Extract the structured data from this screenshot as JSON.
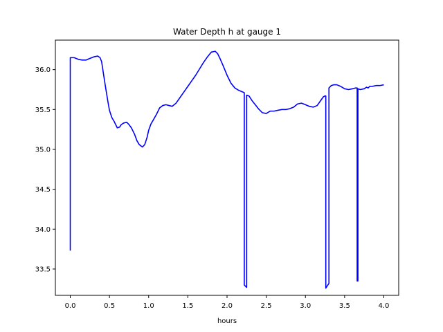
{
  "chart_data": {
    "type": "line",
    "title": "Water Depth h at gauge 1",
    "xlabel": "hours",
    "ylabel": "",
    "xlim": [
      -0.19,
      4.19
    ],
    "ylim": [
      33.17,
      36.37
    ],
    "xticks": [
      0.0,
      0.5,
      1.0,
      1.5,
      2.0,
      2.5,
      3.0,
      3.5,
      4.0
    ],
    "xtick_labels": [
      "0.0",
      "0.5",
      "1.0",
      "1.5",
      "2.0",
      "2.5",
      "3.0",
      "3.5",
      "4.0"
    ],
    "yticks": [
      33.5,
      34.0,
      34.5,
      35.0,
      35.5,
      36.0
    ],
    "ytick_labels": [
      "33.5",
      "34.0",
      "34.5",
      "35.0",
      "35.5",
      "36.0"
    ],
    "grid": false,
    "legend": false,
    "series": [
      {
        "color": "#0000ff",
        "x": [
          0.0,
          0.0,
          0.05,
          0.1,
          0.15,
          0.2,
          0.25,
          0.3,
          0.35,
          0.38,
          0.4,
          0.42,
          0.45,
          0.48,
          0.5,
          0.53,
          0.56,
          0.6,
          0.63,
          0.65,
          0.68,
          0.72,
          0.75,
          0.78,
          0.82,
          0.85,
          0.88,
          0.92,
          0.95,
          0.98,
          1.0,
          1.03,
          1.06,
          1.1,
          1.14,
          1.18,
          1.22,
          1.26,
          1.3,
          1.35,
          1.4,
          1.45,
          1.5,
          1.55,
          1.6,
          1.65,
          1.7,
          1.75,
          1.8,
          1.85,
          1.88,
          1.91,
          1.95,
          2.0,
          2.05,
          2.1,
          2.15,
          2.2,
          2.22,
          2.22,
          2.25,
          2.25,
          2.28,
          2.32,
          2.36,
          2.4,
          2.45,
          2.5,
          2.55,
          2.6,
          2.65,
          2.7,
          2.75,
          2.8,
          2.85,
          2.9,
          2.95,
          3.0,
          3.05,
          3.1,
          3.15,
          3.2,
          3.23,
          3.25,
          3.26,
          3.26,
          3.3,
          3.3,
          3.33,
          3.36,
          3.4,
          3.45,
          3.5,
          3.55,
          3.6,
          3.64,
          3.66,
          3.66,
          3.67,
          3.67,
          3.7,
          3.75,
          3.78,
          3.8,
          3.82,
          3.85,
          3.9,
          3.95,
          4.0
        ],
        "y": [
          33.73,
          36.15,
          36.15,
          36.13,
          36.12,
          36.12,
          36.14,
          36.16,
          36.17,
          36.15,
          36.1,
          35.97,
          35.78,
          35.6,
          35.49,
          35.4,
          35.35,
          35.27,
          35.28,
          35.31,
          35.33,
          35.34,
          35.31,
          35.27,
          35.19,
          35.11,
          35.06,
          35.03,
          35.06,
          35.15,
          35.24,
          35.32,
          35.37,
          35.44,
          35.52,
          35.55,
          35.56,
          35.55,
          35.54,
          35.58,
          35.65,
          35.72,
          35.79,
          35.86,
          35.93,
          36.01,
          36.09,
          36.16,
          36.22,
          36.23,
          36.2,
          36.14,
          36.05,
          35.93,
          35.83,
          35.77,
          35.74,
          35.72,
          35.71,
          33.3,
          33.27,
          35.68,
          35.67,
          35.61,
          35.56,
          35.51,
          35.46,
          35.45,
          35.48,
          35.48,
          35.49,
          35.5,
          35.5,
          35.51,
          35.53,
          35.57,
          35.58,
          35.56,
          35.54,
          35.53,
          35.55,
          35.62,
          35.66,
          35.67,
          35.67,
          33.26,
          33.32,
          35.77,
          35.8,
          35.81,
          35.81,
          35.79,
          35.76,
          35.75,
          35.76,
          35.77,
          35.77,
          33.35,
          33.35,
          35.76,
          35.75,
          35.76,
          35.78,
          35.77,
          35.79,
          35.79,
          35.8,
          35.8,
          35.81
        ]
      }
    ]
  }
}
